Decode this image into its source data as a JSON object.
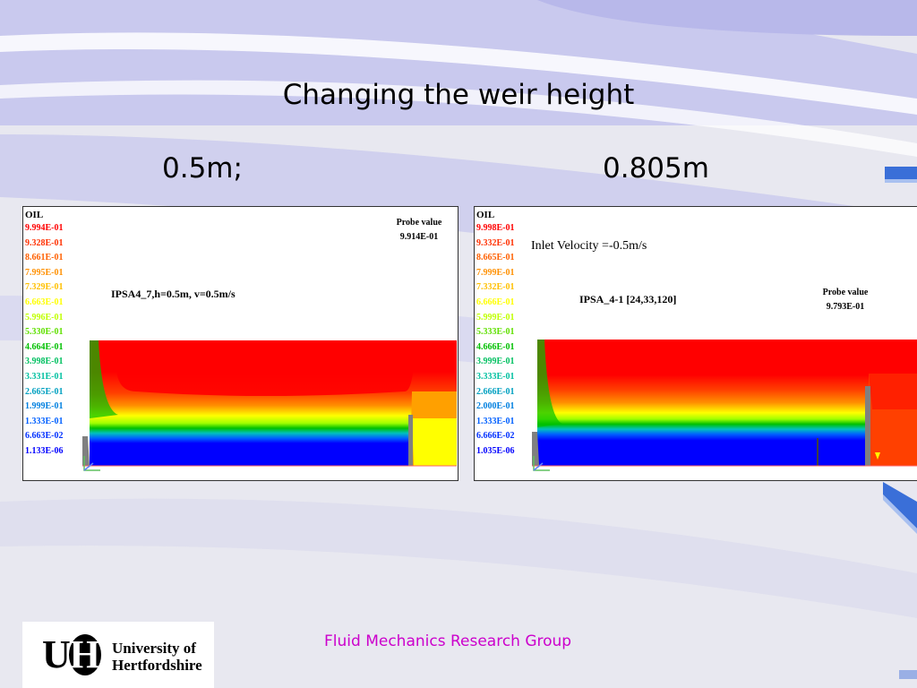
{
  "slide": {
    "title": "Changing the weir height",
    "footer": "Fluid Mechanics Research Group"
  },
  "logo": {
    "initial_u": "U",
    "initial_h": "H",
    "line1": "University of",
    "line2": "Hertfordshire"
  },
  "colors": {
    "red": "#ff0000",
    "orange_red": "#ff4000",
    "orange": "#ff8000",
    "yellow": "#ffff00",
    "green": "#00c000",
    "cyan": "#00c0c0",
    "blue": "#0000ff",
    "footer_magenta": "#cc00cc",
    "weir_grey": "#808080"
  },
  "panels": [
    {
      "label": "0.5m;",
      "legend_title": "OIL",
      "legend": [
        {
          "value": "9.994E-01",
          "color": "#ff0000"
        },
        {
          "value": "9.328E-01",
          "color": "#ff3000"
        },
        {
          "value": "8.661E-01",
          "color": "#ff6000"
        },
        {
          "value": "7.995E-01",
          "color": "#ff9000"
        },
        {
          "value": "7.329E-01",
          "color": "#ffc000"
        },
        {
          "value": "6.663E-01",
          "color": "#ffff00"
        },
        {
          "value": "5.996E-01",
          "color": "#c0ff00"
        },
        {
          "value": "5.330E-01",
          "color": "#60e000"
        },
        {
          "value": "4.664E-01",
          "color": "#00c000"
        },
        {
          "value": "3.998E-01",
          "color": "#00c060"
        },
        {
          "value": "3.331E-01",
          "color": "#00c0a0"
        },
        {
          "value": "2.665E-01",
          "color": "#00a0c0"
        },
        {
          "value": "1.999E-01",
          "color": "#0080e0"
        },
        {
          "value": "1.333E-01",
          "color": "#0060ff"
        },
        {
          "value": "6.663E-02",
          "color": "#0030ff"
        },
        {
          "value": "1.133E-06",
          "color": "#0000ff"
        }
      ],
      "probe_label": "Probe value",
      "probe_value": "9.914E-01",
      "caption": "IPSA4_7,h=0.5m, v=0.5m/s",
      "inlet_text": ""
    },
    {
      "label": "0.805m",
      "legend_title": "OIL",
      "legend": [
        {
          "value": "9.998E-01",
          "color": "#ff0000"
        },
        {
          "value": "9.332E-01",
          "color": "#ff3000"
        },
        {
          "value": "8.665E-01",
          "color": "#ff6000"
        },
        {
          "value": "7.999E-01",
          "color": "#ff9000"
        },
        {
          "value": "7.332E-01",
          "color": "#ffc000"
        },
        {
          "value": "6.666E-01",
          "color": "#ffff00"
        },
        {
          "value": "5.999E-01",
          "color": "#c0ff00"
        },
        {
          "value": "5.333E-01",
          "color": "#60e000"
        },
        {
          "value": "4.666E-01",
          "color": "#00c000"
        },
        {
          "value": "3.999E-01",
          "color": "#00c060"
        },
        {
          "value": "3.333E-01",
          "color": "#00c0a0"
        },
        {
          "value": "2.666E-01",
          "color": "#00a0c0"
        },
        {
          "value": "2.000E-01",
          "color": "#0080e0"
        },
        {
          "value": "1.333E-01",
          "color": "#0060ff"
        },
        {
          "value": "6.666E-02",
          "color": "#0030ff"
        },
        {
          "value": "1.035E-06",
          "color": "#0000ff"
        }
      ],
      "probe_label": "Probe value",
      "probe_value": "9.793E-01",
      "caption": "IPSA_4-1 [24,33,120]",
      "inlet_text": "Inlet Velocity =-0.5m/s"
    }
  ]
}
